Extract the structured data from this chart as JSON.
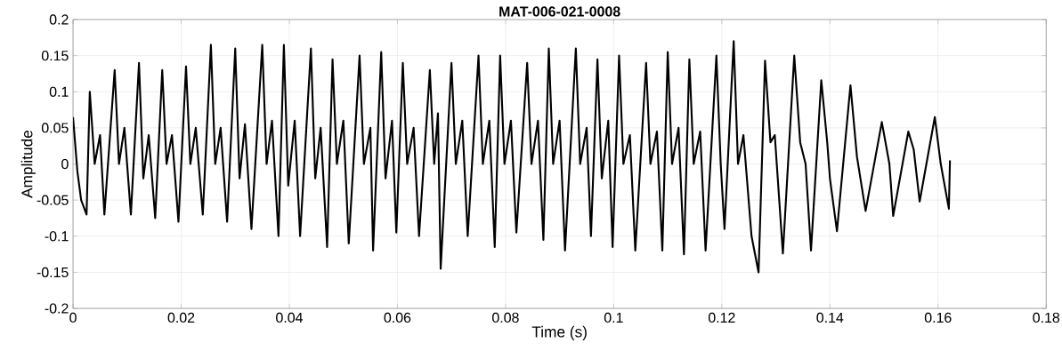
{
  "chart_data": {
    "type": "line",
    "title": "MAT-006-021-0008",
    "xlabel": "Time (s)",
    "ylabel": "Amplitude",
    "color": "#000000",
    "line_style": "solid",
    "grid": true,
    "xlim": [
      0,
      0.18
    ],
    "ylim": [
      -0.2,
      0.2
    ],
    "xticks": [
      0,
      0.02,
      0.04,
      0.06,
      0.08,
      0.1,
      0.12,
      0.14,
      0.16,
      0.18
    ],
    "yticks": [
      -0.2,
      -0.15,
      -0.1,
      -0.05,
      0,
      0.05,
      0.1,
      0.15,
      0.2
    ],
    "x": [
      0,
      0.0008,
      0.0015,
      0.0025,
      0.0031,
      0.004,
      0.005,
      0.0058,
      0.0077,
      0.0085,
      0.0095,
      0.0107,
      0.0122,
      0.013,
      0.014,
      0.0152,
      0.0165,
      0.0173,
      0.0183,
      0.0195,
      0.0209,
      0.0217,
      0.0227,
      0.024,
      0.0255,
      0.0263,
      0.0273,
      0.0285,
      0.03,
      0.0308,
      0.0318,
      0.033,
      0.035,
      0.0358,
      0.0368,
      0.038,
      0.039,
      0.0398,
      0.041,
      0.042,
      0.044,
      0.0448,
      0.0458,
      0.047,
      0.048,
      0.0488,
      0.05,
      0.051,
      0.053,
      0.0538,
      0.055,
      0.0555,
      0.057,
      0.0578,
      0.059,
      0.0598,
      0.061,
      0.0618,
      0.063,
      0.064,
      0.066,
      0.0668,
      0.0675,
      0.068,
      0.07,
      0.0708,
      0.072,
      0.073,
      0.075,
      0.0758,
      0.077,
      0.078,
      0.079,
      0.0798,
      0.081,
      0.082,
      0.084,
      0.0848,
      0.086,
      0.087,
      0.088,
      0.0888,
      0.09,
      0.091,
      0.093,
      0.0938,
      0.095,
      0.0958,
      0.097,
      0.0978,
      0.099,
      0.0998,
      0.101,
      0.1018,
      0.103,
      0.104,
      0.106,
      0.1068,
      0.108,
      0.109,
      0.11,
      0.1108,
      0.112,
      0.113,
      0.114,
      0.1148,
      0.116,
      0.117,
      0.119,
      0.1198,
      0.1205,
      0.1222,
      0.123,
      0.124,
      0.1255,
      0.1268,
      0.128,
      0.129,
      0.1298,
      0.1313,
      0.1334,
      0.1345,
      0.1355,
      0.1365,
      0.1384,
      0.1395,
      0.14,
      0.1413,
      0.1438,
      0.145,
      0.1466,
      0.1496,
      0.151,
      0.1517,
      0.1545,
      0.1555,
      0.1566,
      0.1594,
      0.1605,
      0.162,
      0.1622
    ],
    "values": [
      0.065,
      -0.01,
      -0.05,
      -0.07,
      0.1,
      0.0,
      0.04,
      -0.07,
      0.13,
      0.0,
      0.05,
      -0.07,
      0.14,
      -0.02,
      0.04,
      -0.075,
      0.13,
      0.0,
      0.04,
      -0.08,
      0.135,
      0.0,
      0.05,
      -0.07,
      0.165,
      0.0,
      0.05,
      -0.08,
      0.16,
      -0.02,
      0.055,
      -0.09,
      0.165,
      0.0,
      0.06,
      -0.1,
      0.165,
      -0.03,
      0.06,
      -0.1,
      0.16,
      -0.02,
      0.05,
      -0.115,
      0.145,
      0.0,
      0.06,
      -0.11,
      0.15,
      0.0,
      0.05,
      -0.12,
      0.155,
      -0.02,
      0.06,
      -0.095,
      0.14,
      0.0,
      0.05,
      -0.1,
      0.13,
      0.0,
      0.07,
      -0.145,
      0.14,
      0.0,
      0.06,
      -0.1,
      0.15,
      0.0,
      0.06,
      -0.115,
      0.15,
      0.0,
      0.06,
      -0.095,
      0.14,
      0.0,
      0.06,
      -0.105,
      0.16,
      0.0,
      0.06,
      -0.12,
      0.16,
      0.0,
      0.05,
      -0.1,
      0.145,
      -0.02,
      0.06,
      -0.115,
      0.15,
      0.0,
      0.04,
      -0.12,
      0.14,
      0.0,
      0.045,
      -0.12,
      0.155,
      0.0,
      0.05,
      -0.125,
      0.145,
      0.0,
      0.045,
      -0.12,
      0.15,
      0.0,
      -0.09,
      0.17,
      0.0,
      0.04,
      -0.1,
      -0.15,
      0.143,
      0.03,
      0.04,
      -0.124,
      0.15,
      0.03,
      0.0,
      -0.12,
      0.116,
      0.03,
      -0.02,
      -0.093,
      0.109,
      0.01,
      -0.065,
      0.058,
      0.0,
      -0.072,
      0.045,
      0.02,
      -0.052,
      0.065,
      0.0,
      -0.062,
      0.005
    ]
  }
}
